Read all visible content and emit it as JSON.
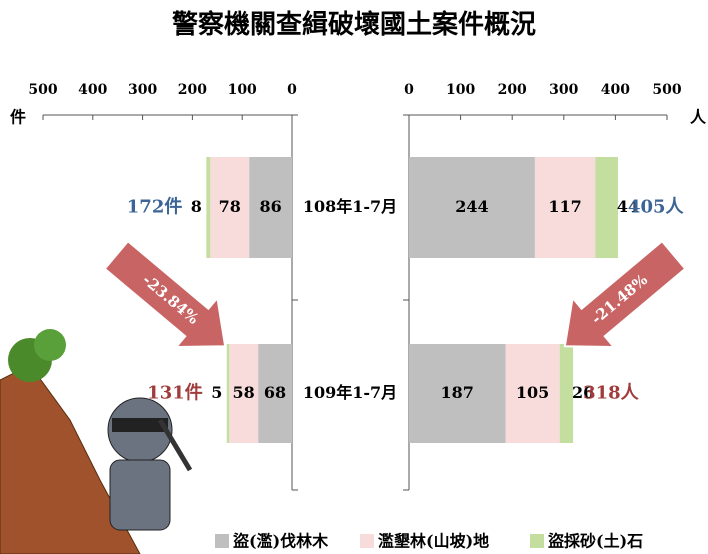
{
  "title": "警察機關查緝破壞國土案件概況",
  "chart_data": [
    {
      "type": "bar",
      "orientation": "horizontal",
      "stacked": true,
      "unit_label": "件",
      "categories": [
        "108年1-7月",
        "109年1-7月"
      ],
      "series": [
        {
          "name": "盜(濫)伐林木",
          "color": "#bfbfbf",
          "values": [
            86,
            68
          ]
        },
        {
          "name": "濫墾林(山坡)地",
          "color": "#f8dcdc",
          "values": [
            78,
            58
          ]
        },
        {
          "name": "盜採砂(土)石",
          "color": "#c4dea0",
          "values": [
            8,
            5
          ]
        }
      ],
      "xlim": [
        500,
        0
      ],
      "xticks": [
        500,
        400,
        300,
        200,
        100,
        0
      ],
      "totals": [
        172,
        131
      ],
      "total_labels": [
        "172件",
        "131件"
      ],
      "total_colors": [
        "#3c6496",
        "#a03c3c"
      ],
      "change_label": "-23.84%"
    },
    {
      "type": "bar",
      "orientation": "horizontal",
      "stacked": true,
      "unit_label": "人",
      "series": [
        {
          "color": "#bfbfbf",
          "values": [
            244,
            187
          ]
        },
        {
          "color": "#f8dcdc",
          "values": [
            117,
            105
          ]
        },
        {
          "color": "#c4dea0",
          "values": [
            44,
            26
          ]
        }
      ],
      "xlim": [
        0,
        500
      ],
      "xticks": [
        0,
        100,
        200,
        300,
        400,
        500
      ],
      "totals": [
        405,
        318
      ],
      "total_labels": [
        "405人",
        "318人"
      ],
      "total_colors": [
        "#3c6496",
        "#a03c3c"
      ],
      "change_label": "-21.48%"
    }
  ]
}
